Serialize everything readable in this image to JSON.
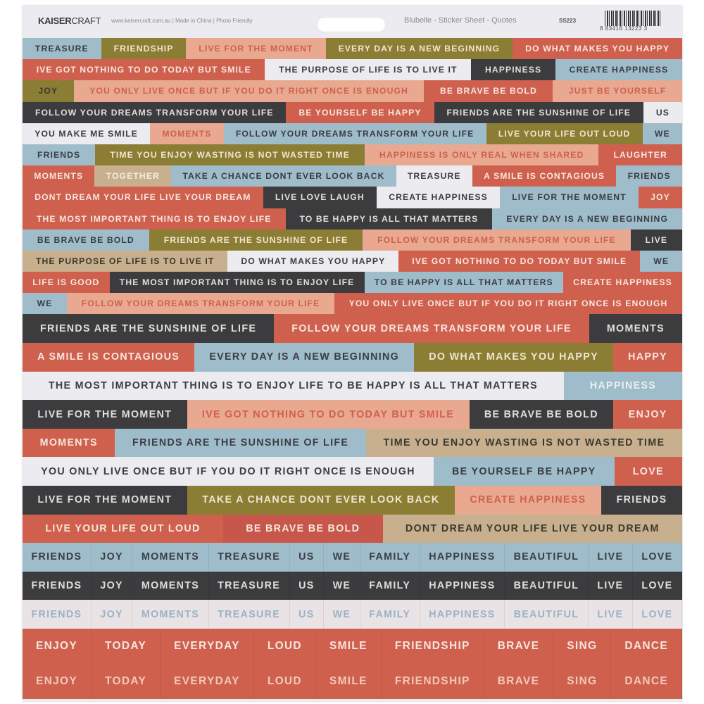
{
  "header": {
    "brand_bold": "KAISER",
    "brand_light": "CRAFT",
    "site": "www.kaisercraft.com.au | Made in China | Photo Friendly",
    "title": "Blubelle - Sticker Sheet - Quotes",
    "sku": "SS223",
    "barcode_number": "8 83416 13223 3"
  },
  "colors": {
    "blue": "#9fbccb",
    "olive": "#8c7d35",
    "pink": "#e8a990",
    "coral": "#d0604e",
    "white": "#ecebef",
    "dark": "#3c3c3e",
    "tan": "#c8b08e"
  },
  "rows": [
    {
      "size": "s",
      "cells": [
        [
          "TREASURE",
          "b"
        ],
        [
          "FRIENDSHIP",
          "o"
        ],
        [
          "LIVE FOR THE MOMENT",
          "p"
        ],
        [
          "EVERY DAY IS A NEW BEGINNING",
          "o"
        ],
        [
          "DO WHAT MAKES YOU HAPPY",
          "c"
        ]
      ]
    },
    {
      "size": "s",
      "cells": [
        [
          "IVE GOT NOTHING TO DO TODAY BUT SMILE",
          "c"
        ],
        [
          "THE PURPOSE OF LIFE IS TO LIVE IT",
          "w"
        ],
        [
          "HAPPINESS",
          "d"
        ],
        [
          "CREATE HAPPINESS",
          "b"
        ]
      ]
    },
    {
      "size": "s",
      "cells": [
        [
          "JOY",
          "od"
        ],
        [
          "YOU ONLY LIVE ONCE BUT IF YOU DO IT RIGHT ONCE IS ENOUGH",
          "p"
        ],
        [
          "BE BRAVE BE BOLD",
          "c"
        ],
        [
          "JUST BE YOURSELF",
          "p"
        ]
      ]
    },
    {
      "size": "s",
      "cells": [
        [
          "FOLLOW YOUR DREAMS TRANSFORM YOUR LIFE",
          "d"
        ],
        [
          "BE YOURSELF BE HAPPY",
          "c"
        ],
        [
          "FRIENDS ARE THE SUNSHINE OF LIFE",
          "d"
        ],
        [
          "US",
          "w"
        ]
      ]
    },
    {
      "size": "s",
      "cells": [
        [
          "YOU MAKE ME SMILE",
          "w"
        ],
        [
          "MOMENTS",
          "p"
        ],
        [
          "FOLLOW YOUR DREAMS TRANSFORM YOUR LIFE",
          "b"
        ],
        [
          "LIVE YOUR LIFE OUT LOUD",
          "o"
        ],
        [
          "WE",
          "b"
        ]
      ]
    },
    {
      "size": "s",
      "cells": [
        [
          "FRIENDS",
          "b"
        ],
        [
          "TIME YOU ENJOY WASTING IS NOT WASTED TIME",
          "o"
        ],
        [
          "HAPPINESS IS ONLY REAL WHEN SHARED",
          "p"
        ],
        [
          "LAUGHTER",
          "c"
        ]
      ]
    },
    {
      "size": "s",
      "cells": [
        [
          "MOMENTS",
          "c"
        ],
        [
          "TOGETHER",
          "t"
        ],
        [
          "TAKE A CHANCE DONT EVER LOOK BACK",
          "b"
        ],
        [
          "TREASURE",
          "w"
        ],
        [
          "A SMILE IS CONTAGIOUS",
          "c"
        ],
        [
          "FRIENDS",
          "b"
        ]
      ]
    },
    {
      "size": "s",
      "cells": [
        [
          "DONT DREAM YOUR LIFE LIVE YOUR DREAM",
          "c"
        ],
        [
          "LIVE LOVE LAUGH",
          "d"
        ],
        [
          "CREATE HAPPINESS",
          "w"
        ],
        [
          "LIVE FOR THE MOMENT",
          "b"
        ],
        [
          "JOY",
          "c"
        ]
      ]
    },
    {
      "size": "s",
      "cells": [
        [
          "THE MOST IMPORTANT THING IS TO ENJOY LIFE",
          "c"
        ],
        [
          "TO BE HAPPY IS ALL THAT MATTERS",
          "d"
        ],
        [
          "EVERY DAY IS A NEW BEGINNING",
          "b"
        ]
      ]
    },
    {
      "size": "s",
      "cells": [
        [
          "BE BRAVE BE BOLD",
          "b"
        ],
        [
          "FRIENDS ARE THE SUNSHINE OF LIFE",
          "o"
        ],
        [
          "FOLLOW YOUR DREAMS TRANSFORM YOUR LIFE",
          "p"
        ],
        [
          "LIVE",
          "d"
        ]
      ]
    },
    {
      "size": "s",
      "cells": [
        [
          "THE PURPOSE OF LIFE IS TO LIVE IT",
          "td"
        ],
        [
          "DO WHAT MAKES YOU HAPPY",
          "w"
        ],
        [
          "IVE GOT NOTHING TO DO TODAY BUT SMILE",
          "c"
        ],
        [
          "WE",
          "b"
        ]
      ]
    },
    {
      "size": "s",
      "cells": [
        [
          "LIFE IS GOOD",
          "c"
        ],
        [
          "THE MOST IMPORTANT THING IS TO ENJOY LIFE",
          "d"
        ],
        [
          "TO BE HAPPY IS ALL THAT MATTERS",
          "b"
        ],
        [
          "CREATE HAPPINESS",
          "c"
        ]
      ]
    },
    {
      "size": "s",
      "cells": [
        [
          "WE",
          "b"
        ],
        [
          "FOLLOW YOUR DREAMS TRANSFORM YOUR LIFE",
          "p"
        ],
        [
          "YOU ONLY LIVE ONCE BUT IF YOU DO IT RIGHT ONCE IS ENOUGH",
          "c"
        ]
      ]
    },
    {
      "size": "m",
      "cells": [
        [
          "FRIENDS ARE THE SUNSHINE OF LIFE",
          "d"
        ],
        [
          "FOLLOW YOUR DREAMS TRANSFORM YOUR LIFE",
          "c"
        ],
        [
          "MOMENTS",
          "d"
        ]
      ]
    },
    {
      "size": "m",
      "cells": [
        [
          "A SMILE IS CONTAGIOUS",
          "c"
        ],
        [
          "EVERY DAY IS A NEW BEGINNING",
          "b"
        ],
        [
          "DO WHAT MAKES YOU HAPPY",
          "o"
        ],
        [
          "HAPPY",
          "c"
        ]
      ]
    },
    {
      "size": "m",
      "cells": [
        [
          "THE MOST IMPORTANT THING IS TO ENJOY LIFE TO BE HAPPY IS ALL THAT MATTERS",
          "w"
        ],
        [
          "HAPPINESS",
          "bw"
        ]
      ]
    },
    {
      "size": "m",
      "cells": [
        [
          "LIVE FOR THE MOMENT",
          "d"
        ],
        [
          "IVE GOT NOTHING TO DO TODAY BUT SMILE",
          "p"
        ],
        [
          "BE BRAVE BE BOLD",
          "d"
        ],
        [
          "ENJOY",
          "c"
        ]
      ]
    },
    {
      "size": "m",
      "cells": [
        [
          "MOMENTS",
          "c"
        ],
        [
          "FRIENDS ARE THE SUNSHINE OF LIFE",
          "b"
        ],
        [
          "TIME YOU ENJOY WASTING IS NOT WASTED TIME",
          "td"
        ]
      ]
    },
    {
      "size": "m",
      "cells": [
        [
          "YOU ONLY LIVE ONCE BUT IF YOU DO IT RIGHT ONCE IS ENOUGH",
          "w"
        ],
        [
          "BE YOURSELF BE HAPPY",
          "b"
        ],
        [
          "LOVE",
          "c"
        ]
      ]
    },
    {
      "size": "m",
      "cells": [
        [
          "LIVE FOR THE MOMENT",
          "d"
        ],
        [
          "TAKE A CHANCE DONT EVER LOOK BACK",
          "o"
        ],
        [
          "CREATE HAPPINESS",
          "p"
        ],
        [
          "FRIENDS",
          "d"
        ]
      ]
    },
    {
      "size": "m",
      "cells": [
        [
          "LIVE YOUR LIFE OUT LOUD",
          "c"
        ],
        [
          "BE BRAVE BE BOLD",
          "c2"
        ],
        [
          "DONT DREAM YOUR LIFE LIVE YOUR DREAM",
          "td"
        ]
      ]
    },
    {
      "size": "m",
      "word": true,
      "cells": [
        [
          "FRIENDS",
          "b"
        ],
        [
          "JOY",
          "b"
        ],
        [
          "MOMENTS",
          "b"
        ],
        [
          "TREASURE",
          "b"
        ],
        [
          "US",
          "b"
        ],
        [
          "WE",
          "b"
        ],
        [
          "FAMILY",
          "b"
        ],
        [
          "HAPPINESS",
          "b"
        ],
        [
          "BEAUTIFUL",
          "b"
        ],
        [
          "LIVE",
          "b"
        ],
        [
          "LOVE",
          "b"
        ]
      ]
    },
    {
      "size": "m",
      "word": true,
      "cells": [
        [
          "FRIENDS",
          "d"
        ],
        [
          "JOY",
          "d"
        ],
        [
          "MOMENTS",
          "d"
        ],
        [
          "TREASURE",
          "d"
        ],
        [
          "US",
          "d"
        ],
        [
          "WE",
          "d"
        ],
        [
          "FAMILY",
          "d"
        ],
        [
          "HAPPINESS",
          "d"
        ],
        [
          "BEAUTIFUL",
          "d"
        ],
        [
          "LIVE",
          "d"
        ],
        [
          "LOVE",
          "d"
        ]
      ]
    },
    {
      "size": "m",
      "word": true,
      "cells": [
        [
          "FRIENDS",
          "wb"
        ],
        [
          "JOY",
          "wb"
        ],
        [
          "MOMENTS",
          "wb"
        ],
        [
          "TREASURE",
          "wb"
        ],
        [
          "US",
          "wb"
        ],
        [
          "WE",
          "wb"
        ],
        [
          "FAMILY",
          "wb"
        ],
        [
          "HAPPINESS",
          "wb"
        ],
        [
          "BEAUTIFUL",
          "wb"
        ],
        [
          "LIVE",
          "wb"
        ],
        [
          "LOVE",
          "wb"
        ]
      ]
    },
    {
      "size": "l",
      "word": true,
      "cells": [
        [
          "ENJOY",
          "c"
        ],
        [
          "TODAY",
          "c"
        ],
        [
          "EVERYDAY",
          "c"
        ],
        [
          "LOUD",
          "c"
        ],
        [
          "SMILE",
          "c"
        ],
        [
          "FRIENDSHIP",
          "c"
        ],
        [
          "BRAVE",
          "c"
        ],
        [
          "SING",
          "c"
        ],
        [
          "DANCE",
          "c"
        ]
      ]
    },
    {
      "size": "l",
      "word": true,
      "cells": [
        [
          "ENJOY",
          "cl"
        ],
        [
          "TODAY",
          "cl"
        ],
        [
          "EVERYDAY",
          "cl"
        ],
        [
          "LOUD",
          "cl"
        ],
        [
          "SMILE",
          "cl"
        ],
        [
          "FRIENDSHIP",
          "cl"
        ],
        [
          "BRAVE",
          "cl"
        ],
        [
          "SING",
          "cl"
        ],
        [
          "DANCE",
          "cl"
        ]
      ]
    }
  ]
}
